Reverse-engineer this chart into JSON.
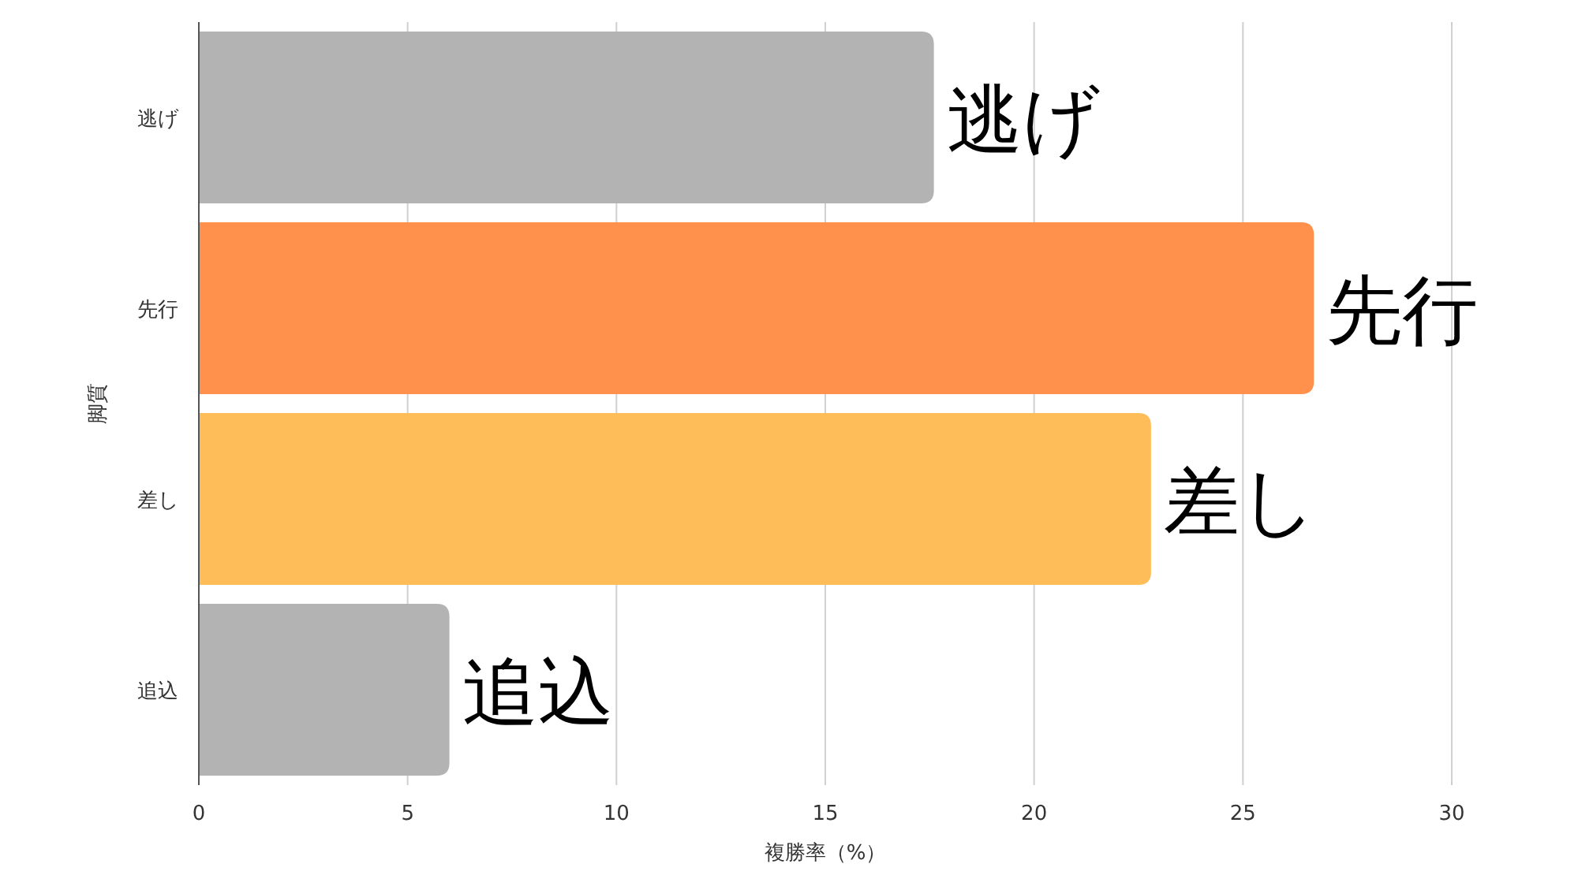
{
  "chart_data": {
    "type": "bar",
    "orientation": "horizontal",
    "xlabel": "複勝率（%）",
    "ylabel": "脚質",
    "categories": [
      "逃げ",
      "先行",
      "差し",
      "追込"
    ],
    "values": [
      17.6,
      26.7,
      22.8,
      6.0
    ],
    "colors": [
      "#b3b3b3",
      "#ff914d",
      "#ffbd59",
      "#b3b3b3"
    ],
    "xlim": [
      0,
      30
    ],
    "xticks": [
      0,
      5,
      10,
      15,
      20,
      25,
      30
    ],
    "grid": "x",
    "annotations": [
      {
        "text": "逃げ",
        "x": 17.6,
        "y": "逃げ"
      },
      {
        "text": "先行",
        "x": 26.7,
        "y": "先行"
      },
      {
        "text": "差し",
        "x": 22.8,
        "y": "差し"
      },
      {
        "text": "追込",
        "x": 6.0,
        "y": "追込"
      }
    ]
  }
}
